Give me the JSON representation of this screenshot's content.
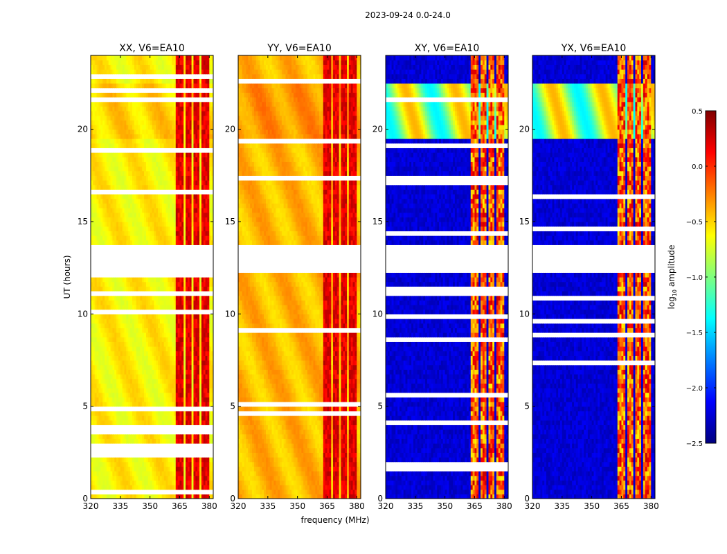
{
  "chart_data": {
    "type": "heatmap",
    "suptitle": "2023-09-24 0.0-24.0",
    "xlabel": "frequency (MHz)",
    "ylabel": "UT (hours)",
    "xlim": [
      320,
      382
    ],
    "ylim": [
      0,
      24
    ],
    "xticks": [
      320,
      335,
      350,
      365,
      380
    ],
    "yticks": [
      0,
      5,
      10,
      15,
      20
    ],
    "panels": [
      {
        "title": "XX, V6=EA10",
        "mode": "parallel",
        "base": -0.6
      },
      {
        "title": "YY, V6=EA10",
        "mode": "parallel",
        "base": -0.42
      },
      {
        "title": "XY, V6=EA10",
        "mode": "cross",
        "base": -2.35
      },
      {
        "title": "YX, V6=EA10",
        "mode": "cross",
        "base": -2.35
      }
    ],
    "rfi_bands_mhz": [
      [
        363,
        367
      ],
      [
        368,
        371
      ],
      [
        372,
        375
      ],
      [
        376,
        380
      ]
    ],
    "time_gaps_hours": [
      [
        12.2,
        13.7
      ]
    ],
    "colorbar": {
      "label_prefix": "log",
      "label_sub": "10",
      "label_suffix": " amplitude",
      "min": -2.5,
      "max": 0.5,
      "ticks": [
        {
          "value": 0.5,
          "label": "0.5"
        },
        {
          "value": 0.0,
          "label": "0.0"
        },
        {
          "value": -0.5,
          "label": "−0.5"
        },
        {
          "value": -1.0,
          "label": "−1.0"
        },
        {
          "value": -1.5,
          "label": "−1.5"
        },
        {
          "value": -2.0,
          "label": "−2.0"
        },
        {
          "value": -2.5,
          "label": "−2.5"
        }
      ],
      "colors": [
        "#00007f",
        "#0000ff",
        "#007fff",
        "#00ffff",
        "#7fff7f",
        "#ffff00",
        "#ff7f00",
        "#ff0000",
        "#7f0000"
      ]
    }
  }
}
